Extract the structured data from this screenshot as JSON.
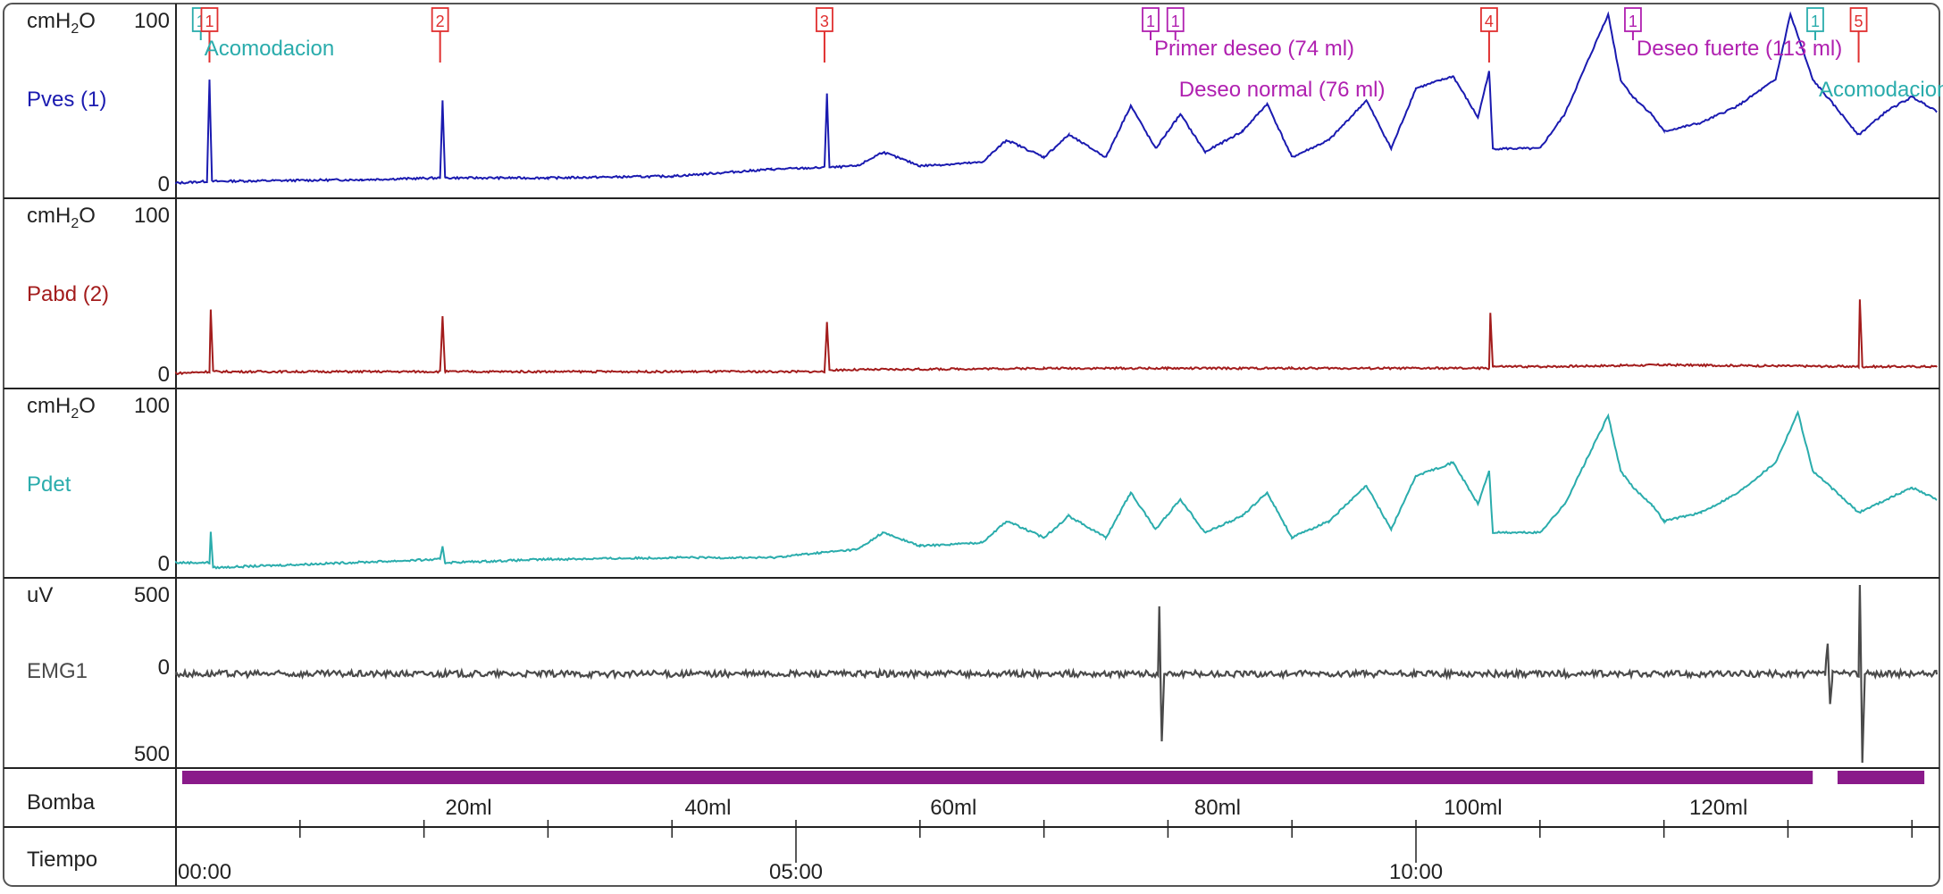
{
  "channels": [
    {
      "id": "pves",
      "unit_prefix": "cmH",
      "unit_sub": "2",
      "unit_suffix": "O",
      "label": "Pves (1)",
      "ymax_label": "100",
      "ymin_label": "0",
      "color": "#1a1ab0"
    },
    {
      "id": "pabd",
      "unit_prefix": "cmH",
      "unit_sub": "2",
      "unit_suffix": "O",
      "label": "Pabd (2)",
      "ymax_label": "100",
      "ymin_label": "0",
      "color": "#a31c1c"
    },
    {
      "id": "pdet",
      "unit_prefix": "cmH",
      "unit_sub": "2",
      "unit_suffix": "O",
      "label": "Pdet",
      "ymax_label": "100",
      "ymin_label": "0",
      "color": "#2aacac"
    },
    {
      "id": "emg",
      "unit_prefix": "uV",
      "unit_sub": "",
      "unit_suffix": "",
      "label": "EMG1",
      "ymax_label": "500",
      "ymid_label": "0",
      "ymin_label": "500",
      "color": "#4a4a4a"
    }
  ],
  "bomba": {
    "label": "Bomba",
    "color": "#8a1a8a",
    "segments": [
      [
        0.05,
        13.2
      ],
      [
        13.4,
        14.1
      ]
    ]
  },
  "tiempo": {
    "label": "Tiempo",
    "tick_labels": [
      {
        "t": 0,
        "label": "00:00"
      },
      {
        "t": 5,
        "label": "05:00"
      },
      {
        "t": 10,
        "label": "10:00"
      }
    ]
  },
  "volume_ticks": [
    {
      "t": 2.36,
      "label": "20ml"
    },
    {
      "t": 4.29,
      "label": "40ml"
    },
    {
      "t": 6.27,
      "label": "60ml"
    },
    {
      "t": 8.4,
      "label": "80ml"
    },
    {
      "t": 10.46,
      "label": "100ml"
    },
    {
      "t": 12.44,
      "label": "120ml"
    }
  ],
  "markers": [
    {
      "t": 0.2,
      "text": "1",
      "color": "#2aacac"
    },
    {
      "t": 0.27,
      "text": "1",
      "color": "#e03030"
    },
    {
      "t": 2.13,
      "text": "2",
      "color": "#e03030"
    },
    {
      "t": 5.23,
      "text": "3",
      "color": "#e03030"
    },
    {
      "t": 7.86,
      "text": "1",
      "color": "#b020b0"
    },
    {
      "t": 8.06,
      "text": "1",
      "color": "#b020b0"
    },
    {
      "t": 10.59,
      "text": "4",
      "color": "#e03030"
    },
    {
      "t": 11.75,
      "text": "1",
      "color": "#b020b0"
    },
    {
      "t": 13.22,
      "text": "1",
      "color": "#2aacac"
    },
    {
      "t": 13.57,
      "text": "5",
      "color": "#e03030"
    }
  ],
  "annotations": [
    {
      "t": 0.2,
      "row": 0,
      "text": "Acomodacion",
      "color": "#2aacac"
    },
    {
      "t": 7.86,
      "row": 0,
      "text": "Primer deseo (74 ml)",
      "color": "#b020b0"
    },
    {
      "t": 8.06,
      "row": 1,
      "text": "Deseo normal (76 ml)",
      "color": "#b020b0"
    },
    {
      "t": 11.75,
      "row": 0,
      "text": "Deseo fuerte (113 ml)",
      "color": "#b020b0"
    },
    {
      "t": 13.22,
      "row": 1,
      "text": "Acomodacion",
      "color": "#2aacac"
    }
  ],
  "chart_data": {
    "type": "line",
    "x_unit": "min",
    "xlim": [
      0,
      14.2
    ],
    "series": [
      {
        "name": "Pves (1)",
        "ylim": [
          0,
          100
        ],
        "points": [
          [
            0,
            0
          ],
          [
            0.25,
            1
          ],
          [
            0.27,
            60
          ],
          [
            0.29,
            1
          ],
          [
            1.5,
            2
          ],
          [
            2.13,
            3
          ],
          [
            2.15,
            48
          ],
          [
            2.17,
            3
          ],
          [
            3,
            3
          ],
          [
            4,
            4
          ],
          [
            4.8,
            8
          ],
          [
            5.23,
            9
          ],
          [
            5.25,
            52
          ],
          [
            5.27,
            9
          ],
          [
            5.5,
            10
          ],
          [
            5.7,
            18
          ],
          [
            6,
            10
          ],
          [
            6.5,
            12
          ],
          [
            6.7,
            25
          ],
          [
            7,
            15
          ],
          [
            7.2,
            28
          ],
          [
            7.5,
            15
          ],
          [
            7.7,
            45
          ],
          [
            7.9,
            20
          ],
          [
            8.1,
            40
          ],
          [
            8.3,
            18
          ],
          [
            8.6,
            30
          ],
          [
            8.8,
            46
          ],
          [
            9,
            15
          ],
          [
            9.3,
            25
          ],
          [
            9.6,
            48
          ],
          [
            9.8,
            20
          ],
          [
            10,
            55
          ],
          [
            10.3,
            62
          ],
          [
            10.5,
            38
          ],
          [
            10.59,
            65
          ],
          [
            10.62,
            20
          ],
          [
            11,
            20
          ],
          [
            11.2,
            40
          ],
          [
            11.55,
            98
          ],
          [
            11.65,
            60
          ],
          [
            11.75,
            50
          ],
          [
            11.9,
            40
          ],
          [
            12,
            30
          ],
          [
            12.3,
            35
          ],
          [
            12.6,
            45
          ],
          [
            12.9,
            60
          ],
          [
            13.02,
            98
          ],
          [
            13.2,
            60
          ],
          [
            13.57,
            28
          ],
          [
            13.8,
            42
          ],
          [
            14,
            50
          ],
          [
            14.2,
            42
          ]
        ]
      },
      {
        "name": "Pabd (2)",
        "ylim": [
          0,
          100
        ],
        "points": [
          [
            0,
            0
          ],
          [
            0.27,
            1
          ],
          [
            0.28,
            38
          ],
          [
            0.3,
            1
          ],
          [
            2.13,
            1
          ],
          [
            2.15,
            34
          ],
          [
            2.17,
            1
          ],
          [
            5.23,
            1
          ],
          [
            5.25,
            30
          ],
          [
            5.27,
            2
          ],
          [
            7,
            3
          ],
          [
            8,
            3
          ],
          [
            9,
            3
          ],
          [
            10.59,
            3
          ],
          [
            10.6,
            36
          ],
          [
            10.62,
            4
          ],
          [
            11,
            4
          ],
          [
            12,
            5
          ],
          [
            13.57,
            4
          ],
          [
            13.58,
            44
          ],
          [
            13.6,
            4
          ],
          [
            14.2,
            4
          ]
        ]
      },
      {
        "name": "Pdet",
        "ylim": [
          0,
          100
        ],
        "points": [
          [
            0,
            0
          ],
          [
            0.27,
            0
          ],
          [
            0.28,
            18
          ],
          [
            0.3,
            -3
          ],
          [
            2.13,
            2
          ],
          [
            2.15,
            10
          ],
          [
            2.17,
            0
          ],
          [
            3,
            2
          ],
          [
            4,
            3
          ],
          [
            4.8,
            3
          ],
          [
            5.2,
            6
          ],
          [
            5.5,
            8
          ],
          [
            5.7,
            18
          ],
          [
            6,
            10
          ],
          [
            6.5,
            12
          ],
          [
            6.7,
            25
          ],
          [
            7,
            15
          ],
          [
            7.2,
            28
          ],
          [
            7.5,
            15
          ],
          [
            7.7,
            42
          ],
          [
            7.9,
            20
          ],
          [
            8.1,
            38
          ],
          [
            8.3,
            18
          ],
          [
            8.6,
            28
          ],
          [
            8.8,
            42
          ],
          [
            9,
            15
          ],
          [
            9.3,
            25
          ],
          [
            9.6,
            46
          ],
          [
            9.8,
            20
          ],
          [
            10,
            52
          ],
          [
            10.3,
            60
          ],
          [
            10.5,
            35
          ],
          [
            10.59,
            55
          ],
          [
            10.62,
            18
          ],
          [
            11,
            18
          ],
          [
            11.2,
            35
          ],
          [
            11.55,
            88
          ],
          [
            11.65,
            55
          ],
          [
            11.75,
            45
          ],
          [
            11.9,
            35
          ],
          [
            12,
            25
          ],
          [
            12.3,
            30
          ],
          [
            12.6,
            42
          ],
          [
            12.9,
            60
          ],
          [
            13.08,
            90
          ],
          [
            13.2,
            55
          ],
          [
            13.57,
            30
          ],
          [
            13.8,
            38
          ],
          [
            14,
            45
          ],
          [
            14.2,
            38
          ]
        ]
      },
      {
        "name": "EMG1",
        "ylim": [
          -500,
          500
        ],
        "points": [
          [
            0,
            0
          ],
          [
            7.92,
            0
          ],
          [
            7.93,
            380
          ],
          [
            7.95,
            -380
          ],
          [
            7.97,
            0
          ],
          [
            13.3,
            0
          ],
          [
            13.32,
            170
          ],
          [
            13.34,
            -170
          ],
          [
            13.36,
            0
          ],
          [
            13.57,
            0
          ],
          [
            13.58,
            500
          ],
          [
            13.6,
            -500
          ],
          [
            13.62,
            0
          ],
          [
            14.2,
            0
          ]
        ]
      }
    ]
  }
}
